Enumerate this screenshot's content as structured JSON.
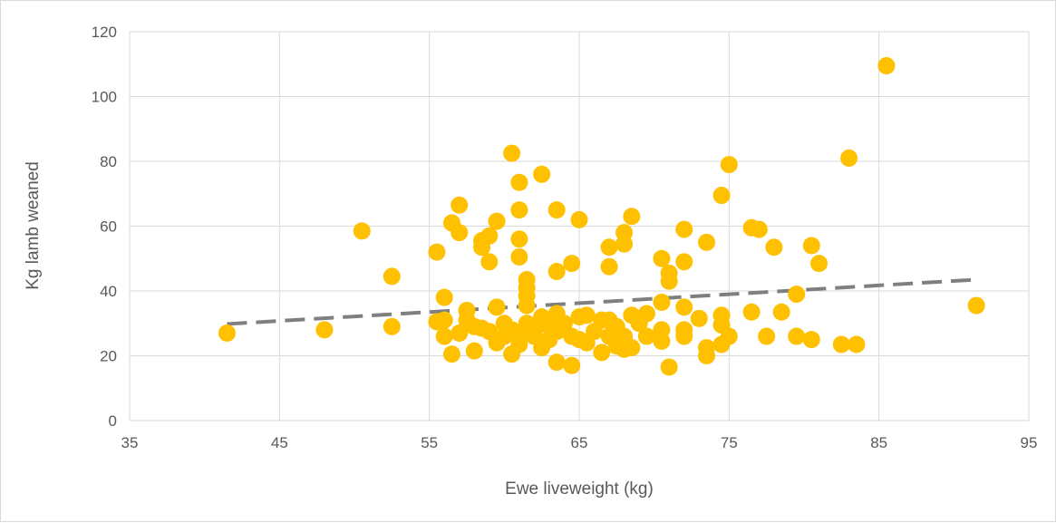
{
  "chart_data": {
    "type": "scatter",
    "title": "",
    "xlabel": "Ewe liveweight (kg)",
    "ylabel": "Kg lamb weaned",
    "xlim": [
      35,
      95
    ],
    "ylim": [
      0,
      120
    ],
    "xticks": [
      "35",
      "45",
      "55",
      "65",
      "75",
      "85",
      "95"
    ],
    "yticks": [
      "0",
      "20",
      "40",
      "60",
      "80",
      "100",
      "120"
    ],
    "grid": true,
    "legend": "none",
    "colors": {
      "points": "#FFC000",
      "trendline": "#7F7F7F",
      "grid": "#D9D9D9",
      "text": "#595959"
    },
    "series": [
      {
        "points": [
          [
            41.5,
            27
          ],
          [
            48,
            28
          ],
          [
            50.5,
            58.5
          ],
          [
            52.5,
            44.5
          ],
          [
            52.5,
            29
          ],
          [
            55.5,
            52
          ],
          [
            55.5,
            30.5
          ],
          [
            56,
            38
          ],
          [
            56,
            31
          ],
          [
            56,
            26
          ],
          [
            56.5,
            61
          ],
          [
            56.5,
            20.5
          ],
          [
            57,
            66.5
          ],
          [
            57,
            58
          ],
          [
            57,
            27
          ],
          [
            57.5,
            34
          ],
          [
            57.5,
            31
          ],
          [
            58,
            29
          ],
          [
            58,
            21.5
          ],
          [
            58.5,
            55.5
          ],
          [
            58.5,
            53.5
          ],
          [
            58.5,
            28.5
          ],
          [
            59,
            57
          ],
          [
            59,
            49
          ],
          [
            59,
            27.5
          ],
          [
            59.5,
            61.5
          ],
          [
            59.5,
            35
          ],
          [
            59.5,
            24
          ],
          [
            60,
            30
          ],
          [
            60,
            26
          ],
          [
            60.5,
            82.5
          ],
          [
            60.5,
            28
          ],
          [
            60.5,
            20.5
          ],
          [
            61,
            73.5
          ],
          [
            61,
            65
          ],
          [
            61,
            56
          ],
          [
            61,
            50.5
          ],
          [
            61,
            27
          ],
          [
            61,
            23.5
          ],
          [
            61.5,
            43.5
          ],
          [
            61.5,
            41
          ],
          [
            61.5,
            38.5
          ],
          [
            61.5,
            35.5
          ],
          [
            61.5,
            30
          ],
          [
            62,
            28
          ],
          [
            62,
            26
          ],
          [
            62.5,
            76
          ],
          [
            62.5,
            32
          ],
          [
            62.5,
            22.5
          ],
          [
            63,
            29
          ],
          [
            63,
            25
          ],
          [
            63.5,
            65
          ],
          [
            63.5,
            46
          ],
          [
            63.5,
            33
          ],
          [
            63.5,
            27.5
          ],
          [
            63.5,
            18
          ],
          [
            64,
            30
          ],
          [
            64.5,
            48.5
          ],
          [
            64.5,
            26
          ],
          [
            64.5,
            17
          ],
          [
            65,
            62
          ],
          [
            65,
            32
          ],
          [
            65,
            25
          ],
          [
            65.5,
            32.5
          ],
          [
            65.5,
            24
          ],
          [
            66,
            27.5
          ],
          [
            66.5,
            31
          ],
          [
            66.5,
            21
          ],
          [
            67,
            53.5
          ],
          [
            67,
            47.5
          ],
          [
            67,
            31
          ],
          [
            67,
            26
          ],
          [
            67.5,
            29
          ],
          [
            67.5,
            23
          ],
          [
            68,
            58
          ],
          [
            68,
            54.5
          ],
          [
            68,
            26
          ],
          [
            68,
            22
          ],
          [
            68.5,
            63
          ],
          [
            68.5,
            32.5
          ],
          [
            68.5,
            22.5
          ],
          [
            69,
            30
          ],
          [
            69.5,
            33
          ],
          [
            69.5,
            26
          ],
          [
            70.5,
            50
          ],
          [
            70.5,
            36.5
          ],
          [
            70.5,
            28
          ],
          [
            70.5,
            24.5
          ],
          [
            71,
            45.5
          ],
          [
            71,
            43
          ],
          [
            71,
            16.5
          ],
          [
            72,
            59
          ],
          [
            72,
            49
          ],
          [
            72,
            35
          ],
          [
            72,
            28
          ],
          [
            72,
            26
          ],
          [
            73,
            31.5
          ],
          [
            73.5,
            55
          ],
          [
            73.5,
            22.5
          ],
          [
            73.5,
            20
          ],
          [
            74.5,
            69.5
          ],
          [
            74.5,
            32.5
          ],
          [
            74.5,
            29.5
          ],
          [
            74.5,
            23.5
          ],
          [
            75,
            79
          ],
          [
            75,
            26
          ],
          [
            76.5,
            59.5
          ],
          [
            76.5,
            33.5
          ],
          [
            77,
            59
          ],
          [
            77.5,
            26
          ],
          [
            78,
            53.5
          ],
          [
            78.5,
            33.5
          ],
          [
            79.5,
            39
          ],
          [
            79.5,
            26
          ],
          [
            80.5,
            54
          ],
          [
            80.5,
            25
          ],
          [
            81,
            48.5
          ],
          [
            82.5,
            23.5
          ],
          [
            83,
            81
          ],
          [
            83.5,
            23.5
          ],
          [
            85.5,
            109.5
          ],
          [
            91.5,
            35.5
          ]
        ]
      }
    ],
    "trendline": {
      "type": "linear",
      "x": [
        41.5,
        91.5
      ],
      "y": [
        29.8,
        43.5
      ],
      "style": "dashed"
    }
  }
}
